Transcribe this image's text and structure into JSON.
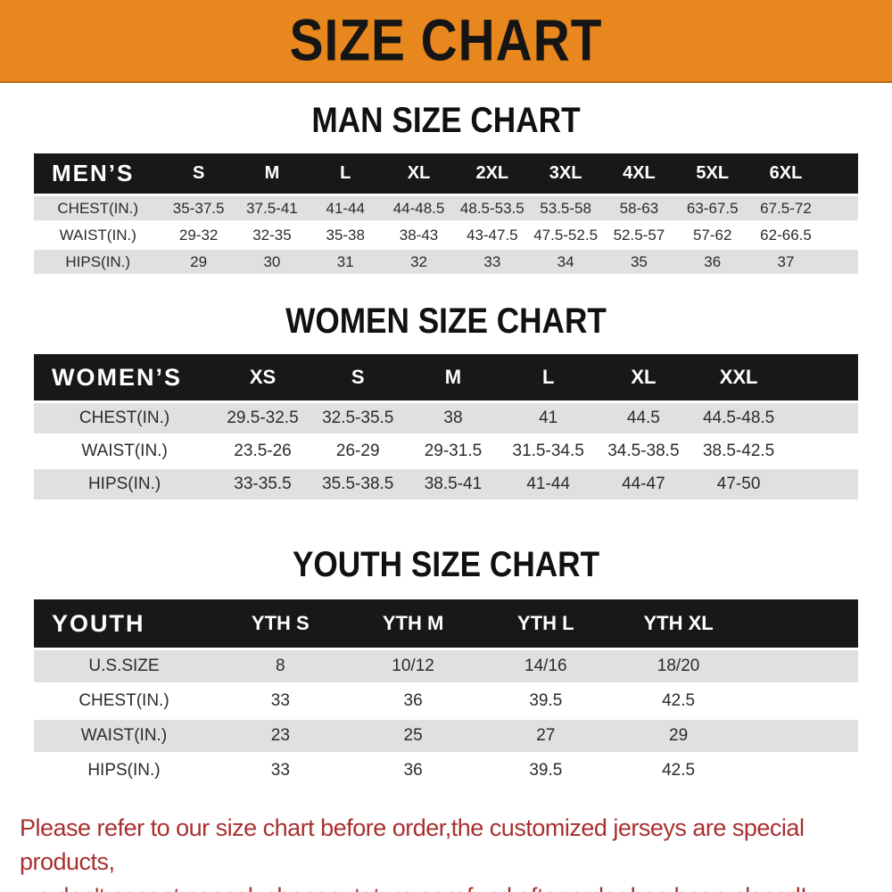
{
  "banner": {
    "title": "SIZE CHART"
  },
  "sections": [
    {
      "heading": "MAN SIZE CHART",
      "header_label": "MEN’S",
      "columns": [
        "S",
        "M",
        "L",
        "XL",
        "2XL",
        "3XL",
        "4XL",
        "5XL",
        "6XL"
      ],
      "rows": [
        {
          "label": "CHEST(IN.)",
          "values": [
            "35-37.5",
            "37.5-41",
            "41-44",
            "44-48.5",
            "48.5-53.5",
            "53.5-58",
            "58-63",
            "63-67.5",
            "67.5-72"
          ]
        },
        {
          "label": "WAIST(IN.)",
          "values": [
            "29-32",
            "32-35",
            "35-38",
            "38-43",
            "43-47.5",
            "47.5-52.5",
            "52.5-57",
            "57-62",
            "62-66.5"
          ]
        },
        {
          "label": "HIPS(IN.)",
          "values": [
            "29",
            "30",
            "31",
            "32",
            "33",
            "34",
            "35",
            "36",
            "37"
          ]
        }
      ]
    },
    {
      "heading": "WOMEN SIZE CHART",
      "header_label": "WOMEN’S",
      "columns": [
        "XS",
        "S",
        "M",
        "L",
        "XL",
        "XXL"
      ],
      "rows": [
        {
          "label": "CHEST(IN.)",
          "values": [
            "29.5-32.5",
            "32.5-35.5",
            "38",
            "41",
            "44.5",
            "44.5-48.5"
          ]
        },
        {
          "label": "WAIST(IN.)",
          "values": [
            "23.5-26",
            "26-29",
            "29-31.5",
            "31.5-34.5",
            "34.5-38.5",
            "38.5-42.5"
          ]
        },
        {
          "label": "HIPS(IN.)",
          "values": [
            "33-35.5",
            "35.5-38.5",
            "38.5-41",
            "41-44",
            "44-47",
            "47-50"
          ]
        }
      ]
    },
    {
      "heading": "YOUTH SIZE CHART",
      "header_label": "YOUTH",
      "columns": [
        "YTH S",
        "YTH M",
        "YTH L",
        "YTH XL"
      ],
      "rows": [
        {
          "label": "U.S.SIZE",
          "values": [
            "8",
            "10/12",
            "14/16",
            "18/20"
          ]
        },
        {
          "label": "CHEST(IN.)",
          "values": [
            "33",
            "36",
            "39.5",
            "42.5"
          ]
        },
        {
          "label": "WAIST(IN.)",
          "values": [
            "23",
            "25",
            "27",
            "29"
          ]
        },
        {
          "label": "HIPS(IN.)",
          "values": [
            "33",
            "36",
            "39.5",
            "42.5"
          ]
        }
      ]
    }
  ],
  "footer": {
    "line1": "Please refer to our size chart before order,the customized jerseys are special products,",
    "line2": "we don't accept cancel, change, teturn or refund after order has been placed!"
  },
  "colors": {
    "banner_orange": "#E8871D",
    "banner_edge": "#BC660F",
    "band_black": "#181818",
    "row_gray": "#E0E0E0",
    "footer_red": "#A93030",
    "text_dark": "#222222"
  }
}
